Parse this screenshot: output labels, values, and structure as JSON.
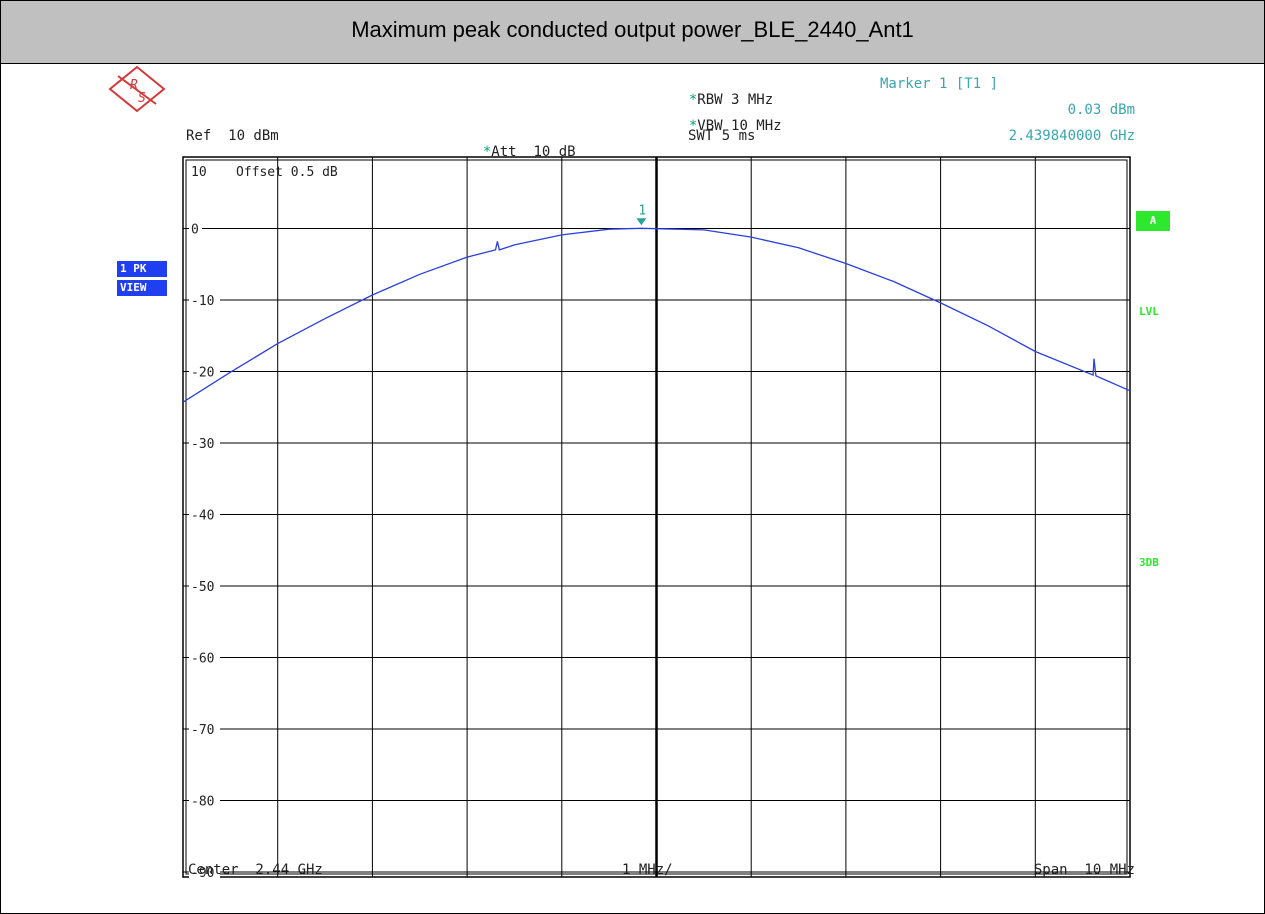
{
  "title": "Maximum peak conducted output power_BLE_2440_Ant1",
  "header": {
    "ref": "Ref  10 dBm",
    "att": "Att  10 dB",
    "rbw": "RBW 3 MHz",
    "vbw": "VBW 10 MHz",
    "swt": "SWT 5 ms",
    "marker_label": "Marker 1 [T1 ]",
    "marker_level": "0.03 dBm",
    "marker_freq": "2.439840000 GHz",
    "offset": "Offset  0.5 dB",
    "star": "*"
  },
  "side": {
    "pk": "1 PK",
    "view": "VIEW",
    "a": "A",
    "lvl": "LVL",
    "db3": "3DB"
  },
  "footer": {
    "center": "Center  2.44 GHz",
    "per_div": "1 MHz/",
    "span": "Span  10 MHz"
  },
  "colors": {
    "trace": "#2a3fe0",
    "marker": "#2aa198",
    "logo": "#d43a3a"
  },
  "icons": {
    "logo": "rohde-schwarz-logo-icon"
  },
  "chart_data": {
    "type": "line",
    "xlabel": "",
    "ylabel": "",
    "x_unit": "GHz",
    "y_unit": "dBm",
    "xlim": [
      2.435,
      2.445
    ],
    "ylim": [
      -92,
      10
    ],
    "y_ticks": [
      10,
      0,
      -10,
      -20,
      -30,
      -40,
      -50,
      -60,
      -70,
      -80,
      -90
    ],
    "y_tick_labels": [
      "10",
      "0",
      "-10",
      "-20",
      "-30",
      "-40",
      "-50",
      "-60",
      "-70",
      "-80",
      "-90"
    ],
    "grid": true,
    "series": [
      {
        "x": [
          2.435,
          2.4355,
          2.436,
          2.4365,
          2.437,
          2.4375,
          2.438,
          2.4383,
          2.43832,
          2.43834,
          2.4385,
          2.439,
          2.4395,
          2.43984,
          2.4405,
          2.441,
          2.4415,
          2.442,
          2.4425,
          2.443,
          2.4435,
          2.444,
          2.44461,
          2.44462,
          2.44464,
          2.445
        ],
        "y": [
          -24.3,
          -20.1,
          -16.1,
          -12.6,
          -9.3,
          -6.4,
          -4.0,
          -3.0,
          -1.8,
          -3.0,
          -2.3,
          -0.9,
          -0.1,
          0.03,
          -0.2,
          -1.2,
          -2.7,
          -4.9,
          -7.4,
          -10.4,
          -13.6,
          -17.2,
          -20.5,
          -18.2,
          -20.6,
          -22.7
        ]
      }
    ],
    "markers": [
      {
        "label": "1",
        "x": 2.43984,
        "y": 0.03
      }
    ]
  }
}
